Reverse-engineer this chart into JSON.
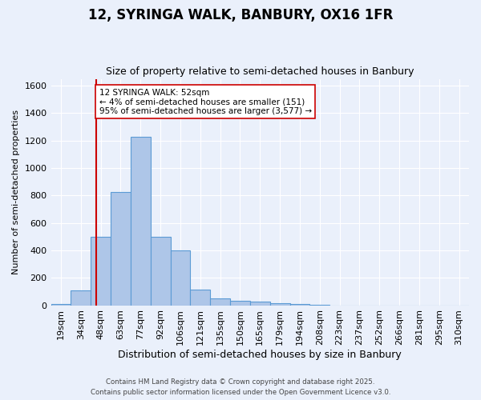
{
  "title": "12, SYRINGA WALK, BANBURY, OX16 1FR",
  "subtitle": "Size of property relative to semi-detached houses in Banbury",
  "xlabel": "Distribution of semi-detached houses by size in Banbury",
  "ylabel": "Number of semi-detached properties",
  "bar_labels": [
    "19sqm",
    "34sqm",
    "48sqm",
    "63sqm",
    "77sqm",
    "92sqm",
    "106sqm",
    "121sqm",
    "135sqm",
    "150sqm",
    "165sqm",
    "179sqm",
    "194sqm",
    "208sqm",
    "223sqm",
    "237sqm",
    "252sqm",
    "266sqm",
    "281sqm",
    "295sqm",
    "310sqm"
  ],
  "bar_values": [
    10,
    110,
    500,
    825,
    1225,
    500,
    400,
    115,
    50,
    30,
    25,
    15,
    10,
    5,
    0,
    0,
    0,
    0,
    0,
    0,
    0
  ],
  "bar_color": "#aec6e8",
  "bar_edge_color": "#5b9bd5",
  "property_line_color": "#cc0000",
  "annotation_text": "12 SYRINGA WALK: 52sqm\n← 4% of semi-detached houses are smaller (151)\n95% of semi-detached houses are larger (3,577) →",
  "annotation_box_color": "#ffffff",
  "annotation_box_edge": "#cc0000",
  "ylim": [
    0,
    1650
  ],
  "footnote1": "Contains HM Land Registry data © Crown copyright and database right 2025.",
  "footnote2": "Contains public sector information licensed under the Open Government Licence v3.0.",
  "bg_color": "#eaf0fb",
  "plot_bg_color": "#eaf0fb",
  "grid_color": "#ffffff",
  "title_fontsize": 12,
  "subtitle_fontsize": 9,
  "bar_width": 1.0,
  "line_x_index": 1.767
}
